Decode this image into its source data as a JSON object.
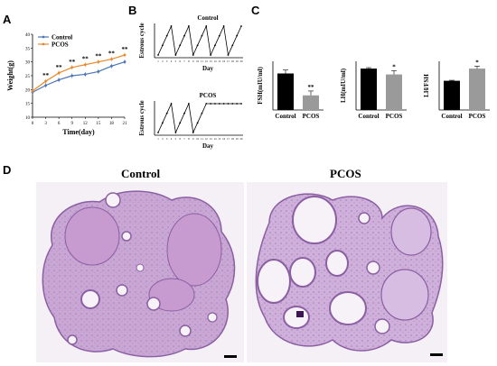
{
  "panels": {
    "A": "A",
    "B": "B",
    "C": "C",
    "D": "D"
  },
  "chart_data": [
    {
      "panel": "A",
      "type": "line",
      "ylabel": "Weight(g)",
      "xlabel": "Time(day)",
      "x": [
        0,
        3,
        6,
        9,
        12,
        15,
        18,
        21
      ],
      "xticks": [
        "0",
        "3",
        "6",
        "9",
        "12",
        "15",
        "18",
        "21"
      ],
      "yticks": [
        "10",
        "15",
        "20",
        "25",
        "30",
        "35",
        "40"
      ],
      "ylim": [
        10,
        40
      ],
      "legend": [
        "Control",
        "PCOS"
      ],
      "series": [
        {
          "name": "Control",
          "color": "#4a74b5",
          "values": [
            19,
            21.5,
            23.5,
            25,
            25.5,
            26.5,
            28.5,
            30
          ]
        },
        {
          "name": "PCOS",
          "color": "#e8892e",
          "values": [
            19.5,
            23,
            26,
            28,
            29,
            30,
            31,
            32.5
          ]
        }
      ],
      "significance": [
        "",
        "**",
        "**",
        "**",
        "**",
        "**",
        "**",
        "**"
      ]
    },
    {
      "panel": "B-Control",
      "type": "line",
      "title": "Control",
      "ylabel": "Estrous cycle",
      "xlabel": "Day",
      "xticks": [
        "1",
        "2",
        "3",
        "4",
        "5",
        "6",
        "7",
        "8",
        "9",
        "10",
        "11",
        "12",
        "13",
        "14",
        "15",
        "16",
        "17",
        "18",
        "19",
        "20"
      ],
      "values": [
        1,
        2,
        3,
        4,
        1,
        2,
        3,
        4,
        1,
        2,
        3,
        4,
        1,
        2,
        3,
        4,
        1,
        2,
        3,
        4
      ]
    },
    {
      "panel": "B-PCOS",
      "type": "line",
      "title": "PCOS",
      "ylabel": "Estrous cycle",
      "xlabel": "Day",
      "xticks": [
        "1",
        "2",
        "3",
        "4",
        "5",
        "6",
        "7",
        "8",
        "9",
        "10",
        "11",
        "12",
        "13",
        "14",
        "15",
        "16",
        "17",
        "18",
        "19",
        "20"
      ],
      "values": [
        1,
        2,
        3,
        4,
        1,
        2,
        3,
        4,
        1,
        2,
        3,
        4,
        4,
        4,
        4,
        4,
        4,
        4,
        4,
        4
      ]
    },
    {
      "panel": "C-FSH",
      "type": "bar",
      "ylabel": "FSH(mIU/ml)",
      "categories": [
        "Control",
        "PCOS"
      ],
      "values": [
        0.75,
        0.3
      ],
      "errors": [
        0.07,
        0.09
      ],
      "ylim": [
        0,
        1
      ],
      "colors": [
        "#000000",
        "#9a9a9a"
      ],
      "significance": [
        "",
        "**"
      ]
    },
    {
      "panel": "C-LH",
      "type": "bar",
      "ylabel": "LH(mIU/ml)",
      "categories": [
        "Control",
        "PCOS"
      ],
      "values": [
        0.85,
        0.73
      ],
      "errors": [
        0.02,
        0.08
      ],
      "ylim": [
        0,
        1
      ],
      "colors": [
        "#000000",
        "#9a9a9a"
      ],
      "significance": [
        "",
        "*"
      ]
    },
    {
      "panel": "C-LHFSH",
      "type": "bar",
      "ylabel": "LH/FSH",
      "categories": [
        "Control",
        "PCOS"
      ],
      "values": [
        0.6,
        0.85
      ],
      "errors": [
        0.01,
        0.05
      ],
      "ylim": [
        0,
        1
      ],
      "colors": [
        "#000000",
        "#9a9a9a"
      ],
      "significance": [
        "",
        "*"
      ]
    }
  ],
  "histology": {
    "left_title": "Control",
    "right_title": "PCOS"
  }
}
